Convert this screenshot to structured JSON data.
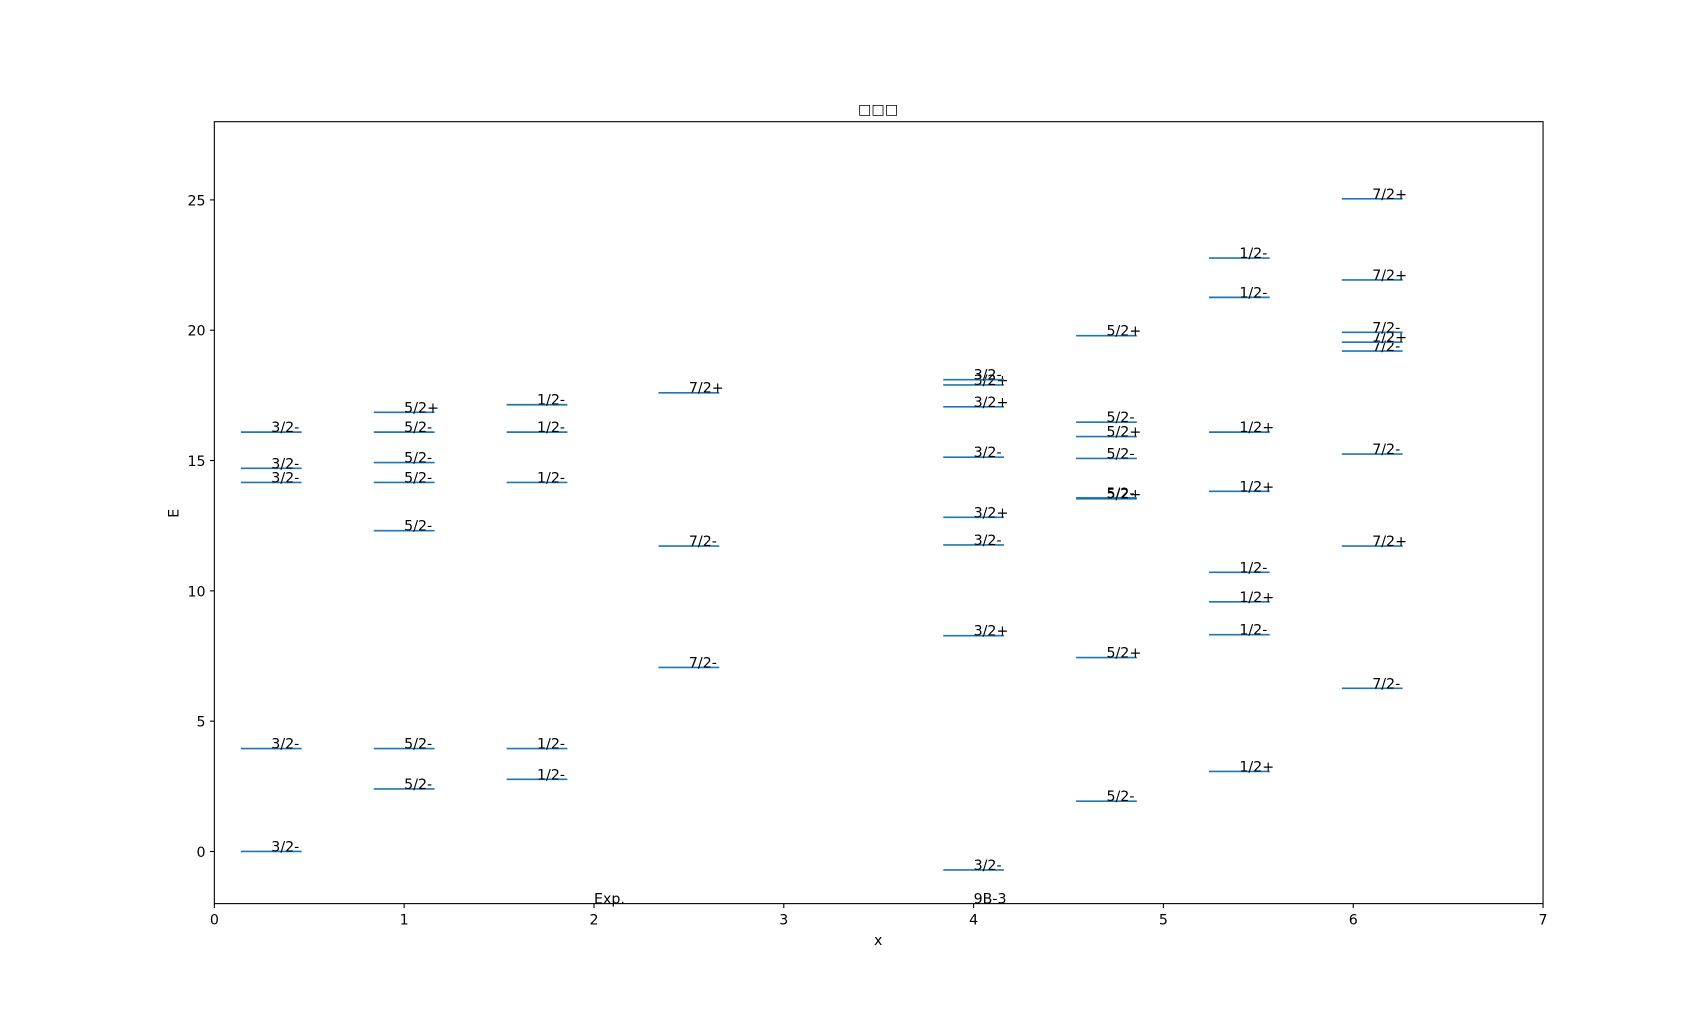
{
  "chart_data": {
    "type": "levels",
    "title": "□□□",
    "x_label": "x",
    "y_label": "E",
    "xlim": [
      0,
      7
    ],
    "ylim": [
      -2,
      28
    ],
    "xticks": [
      0,
      1,
      2,
      3,
      4,
      5,
      6,
      7
    ],
    "yticks": [
      0,
      5,
      10,
      15,
      20,
      25
    ],
    "color": "#1f77b4",
    "annotations": [
      {
        "text": "Exp.",
        "x": 2,
        "y": -2
      },
      {
        "text": "9B-3",
        "x": 4,
        "y": -2
      }
    ],
    "columns": [
      {
        "x": 0.3,
        "values": [
          0,
          3.95,
          14.16,
          14.7,
          16.09
        ],
        "labels": [
          "3/2-",
          "3/2-",
          "3/2-",
          "3/2-",
          "3/2-"
        ]
      },
      {
        "x": 1.0,
        "values": [
          2.4,
          3.95,
          12.31,
          14.16,
          14.92,
          16.09,
          16.85
        ],
        "labels": [
          "5/2-",
          "5/2-",
          "5/2-",
          "5/2-",
          "5/2-",
          "5/2-",
          "5/2+"
        ]
      },
      {
        "x": 1.7,
        "values": [
          2.77,
          3.95,
          14.16,
          16.09,
          17.14
        ],
        "labels": [
          "1/2-",
          "1/2-",
          "1/2-",
          "1/2-",
          "1/2-"
        ]
      },
      {
        "x": 2.5,
        "values": [
          7.06,
          11.72,
          17.6
        ],
        "labels": [
          "7/2-",
          "7/2-",
          "7/2+"
        ]
      },
      {
        "x": 4.0,
        "values": [
          -0.71,
          8.28,
          11.76,
          12.82,
          15.13,
          17.06,
          17.9,
          18.1
        ],
        "labels": [
          "3/2-",
          "3/2+",
          "3/2-",
          "3/2+",
          "3/2-",
          "3/2+",
          "3/2+",
          "3/2-"
        ]
      },
      {
        "x": 4.7,
        "values": [
          1.93,
          7.44,
          13.53,
          13.57,
          15.08,
          15.92,
          16.47,
          19.79
        ],
        "labels": [
          "5/2-",
          "5/2+",
          "5/2+",
          "5/2-",
          "5/2-",
          "5/2+",
          "5/2-",
          "5/2+"
        ]
      },
      {
        "x": 5.4,
        "values": [
          3.07,
          8.32,
          9.58,
          10.71,
          13.82,
          16.09,
          21.26,
          22.77
        ],
        "labels": [
          "1/2+",
          "1/2-",
          "1/2+",
          "1/2-",
          "1/2+",
          "1/2+",
          "1/2-",
          "1/2-"
        ]
      },
      {
        "x": 6.1,
        "values": [
          6.26,
          11.72,
          15.25,
          19.2,
          19.54,
          19.92,
          21.93,
          25.04
        ],
        "labels": [
          "7/2-",
          "7/2+",
          "7/2-",
          "7/2-",
          "7/2+",
          "7/2-",
          "7/2+",
          "7/2+"
        ]
      }
    ]
  }
}
